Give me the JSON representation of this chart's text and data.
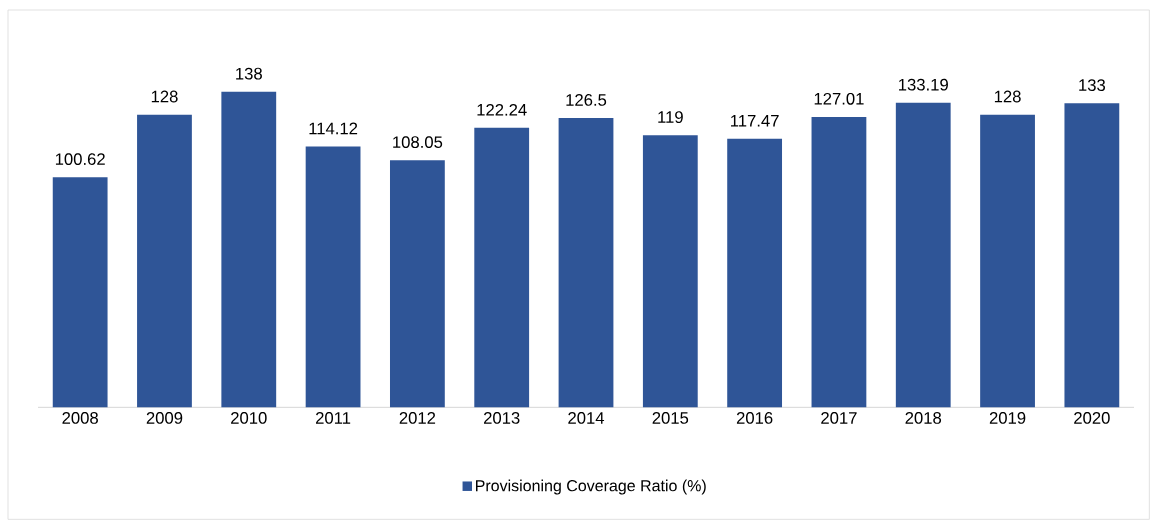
{
  "chart_data": {
    "type": "bar",
    "categories": [
      "2008",
      "2009",
      "2010",
      "2011",
      "2012",
      "2013",
      "2014",
      "2015",
      "2016",
      "2017",
      "2018",
      "2019",
      "2020"
    ],
    "series": [
      {
        "name": "Provisioning Coverage Ratio  (%)",
        "color": "#2f5597",
        "values": [
          100.62,
          128,
          138,
          114.12,
          108.05,
          122.24,
          126.5,
          119,
          117.47,
          127.01,
          133.19,
          128,
          133
        ]
      }
    ],
    "tick_labels": "x",
    "data_labels": true,
    "legend": "bottom"
  }
}
